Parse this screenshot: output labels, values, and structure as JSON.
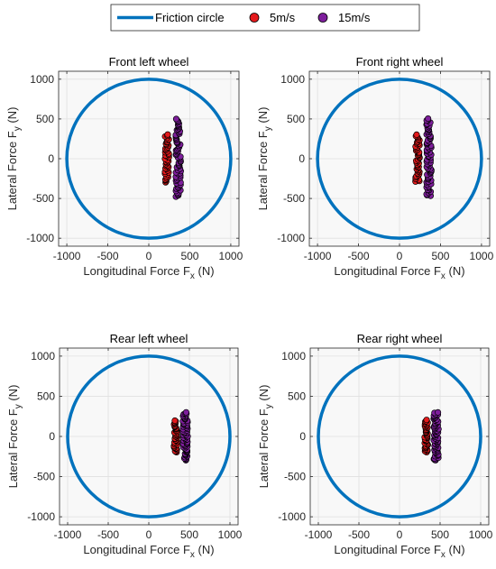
{
  "legend": {
    "position": "top-center",
    "items": [
      {
        "label": "Friction circle",
        "kind": "line",
        "color": "#0072BD"
      },
      {
        "label": "5m/s",
        "kind": "marker",
        "color": "#E41A1C"
      },
      {
        "label": "15m/s",
        "kind": "marker",
        "color": "#7E1E9C"
      }
    ]
  },
  "chart_data": [
    {
      "type": "scatter",
      "title": "Front left wheel",
      "xlabel": "Longitudinal Force F",
      "xlabel_sub": "x",
      "xlabel_unit": " (N)",
      "ylabel": "Lateral Force F",
      "ylabel_sub": "y",
      "ylabel_unit": " (N)",
      "xlim": [
        -1100,
        1100
      ],
      "ylim": [
        -1100,
        1100
      ],
      "xticks": [
        -1000,
        -500,
        0,
        500,
        1000
      ],
      "yticks": [
        -1000,
        -500,
        0,
        500,
        1000
      ],
      "grid": true,
      "circle_radius": 1000,
      "series": [
        {
          "name": "5m/s",
          "color": "#E41A1C",
          "x_center": 220,
          "x_spread": 25,
          "y_range": [
            -300,
            300
          ],
          "count": 45
        },
        {
          "name": "15m/s",
          "color": "#7E1E9C",
          "x_center": 360,
          "x_spread": 30,
          "y_range": [
            -480,
            500
          ],
          "count": 70
        }
      ]
    },
    {
      "type": "scatter",
      "title": "Front right wheel",
      "xlabel": "Longitudinal Force F",
      "xlabel_sub": "x",
      "xlabel_unit": " (N)",
      "ylabel": "Lateral Force F",
      "ylabel_sub": "y",
      "ylabel_unit": " (N)",
      "xlim": [
        -1100,
        1100
      ],
      "ylim": [
        -1100,
        1100
      ],
      "xticks": [
        -1000,
        -500,
        0,
        500,
        1000
      ],
      "yticks": [
        -1000,
        -500,
        0,
        500,
        1000
      ],
      "grid": true,
      "circle_radius": 1000,
      "series": [
        {
          "name": "5m/s",
          "color": "#E41A1C",
          "x_center": 220,
          "x_spread": 25,
          "y_range": [
            -290,
            300
          ],
          "count": 45
        },
        {
          "name": "15m/s",
          "color": "#7E1E9C",
          "x_center": 360,
          "x_spread": 30,
          "y_range": [
            -470,
            500
          ],
          "count": 70
        }
      ]
    },
    {
      "type": "scatter",
      "title": "Rear left wheel",
      "xlabel": "Longitudinal Force F",
      "xlabel_sub": "x",
      "xlabel_unit": " (N)",
      "ylabel": "Lateral Force F",
      "ylabel_sub": "y",
      "ylabel_unit": " (N)",
      "xlim": [
        -1100,
        1100
      ],
      "ylim": [
        -1100,
        1100
      ],
      "xticks": [
        -1000,
        -500,
        0,
        500,
        1000
      ],
      "yticks": [
        -1000,
        -500,
        0,
        500,
        1000
      ],
      "grid": true,
      "circle_radius": 1000,
      "series": [
        {
          "name": "5m/s",
          "color": "#E41A1C",
          "x_center": 330,
          "x_spread": 20,
          "y_range": [
            -200,
            200
          ],
          "count": 40
        },
        {
          "name": "15m/s",
          "color": "#7E1E9C",
          "x_center": 450,
          "x_spread": 30,
          "y_range": [
            -300,
            300
          ],
          "count": 60
        }
      ]
    },
    {
      "type": "scatter",
      "title": "Rear right wheel",
      "xlabel": "Longitudinal Force F",
      "xlabel_sub": "x",
      "xlabel_unit": " (N)",
      "ylabel": "Lateral Force F",
      "ylabel_sub": "y",
      "ylabel_unit": " (N)",
      "xlim": [
        -1100,
        1100
      ],
      "ylim": [
        -1100,
        1100
      ],
      "xticks": [
        -1000,
        -500,
        0,
        500,
        1000
      ],
      "yticks": [
        -1000,
        -500,
        0,
        500,
        1000
      ],
      "grid": true,
      "circle_radius": 1000,
      "series": [
        {
          "name": "5m/s",
          "color": "#E41A1C",
          "x_center": 330,
          "x_spread": 20,
          "y_range": [
            -200,
            200
          ],
          "count": 40
        },
        {
          "name": "15m/s",
          "color": "#7E1E9C",
          "x_center": 450,
          "x_spread": 30,
          "y_range": [
            -300,
            300
          ],
          "count": 60
        }
      ]
    }
  ]
}
